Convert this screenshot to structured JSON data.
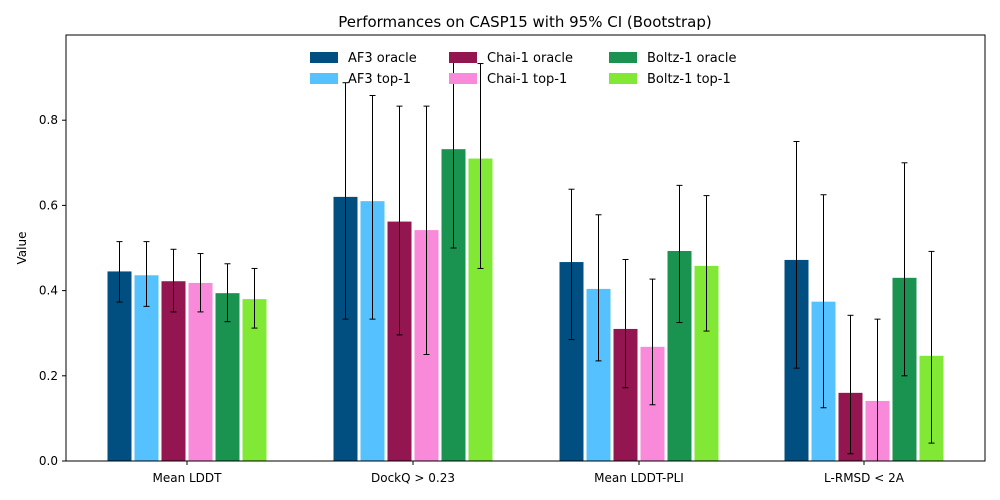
{
  "chart_data": {
    "type": "bar",
    "title": "Performances on CASP15 with 95% CI (Bootstrap)",
    "xlabel": "",
    "ylabel": "Value",
    "ylim": [
      0,
      1.0
    ],
    "yticks": [
      0.0,
      0.2,
      0.4,
      0.6,
      0.8
    ],
    "ytick_labels": [
      "0.0",
      "0.2",
      "0.4",
      "0.6",
      "0.8"
    ],
    "grid": false,
    "legend": "upper-center",
    "categories": [
      "Mean LDDT",
      "DockQ > 0.23",
      "Mean LDDT-PLI",
      "L-RMSD < 2A"
    ],
    "series": [
      {
        "name": "AF3 oracle",
        "color": "#004f80",
        "values": [
          0.445,
          0.62,
          0.467,
          0.472
        ],
        "ci_low": [
          0.373,
          0.333,
          0.285,
          0.218
        ],
        "ci_high": [
          0.515,
          0.888,
          0.638,
          0.75
        ]
      },
      {
        "name": "AF3 top-1",
        "color": "#56c1ff",
        "values": [
          0.436,
          0.61,
          0.404,
          0.374
        ],
        "ci_low": [
          0.363,
          0.333,
          0.235,
          0.125
        ],
        "ci_high": [
          0.515,
          0.858,
          0.578,
          0.625
        ]
      },
      {
        "name": "Chai-1 oracle",
        "color": "#931651",
        "values": [
          0.422,
          0.562,
          0.31,
          0.16
        ],
        "ci_low": [
          0.35,
          0.296,
          0.172,
          0.017
        ],
        "ci_high": [
          0.497,
          0.833,
          0.473,
          0.342
        ]
      },
      {
        "name": "Chai-1 top-1",
        "color": "#f98ad9",
        "values": [
          0.418,
          0.542,
          0.268,
          0.141
        ],
        "ci_low": [
          0.35,
          0.25,
          0.132,
          0.0
        ],
        "ci_high": [
          0.487,
          0.833,
          0.427,
          0.333
        ]
      },
      {
        "name": "Boltz-1 oracle",
        "color": "#1a9350",
        "values": [
          0.394,
          0.732,
          0.493,
          0.43
        ],
        "ci_low": [
          0.327,
          0.5,
          0.325,
          0.2
        ],
        "ci_high": [
          0.463,
          0.958,
          0.647,
          0.7
        ]
      },
      {
        "name": "Boltz-1 top-1",
        "color": "#82e836",
        "values": [
          0.38,
          0.71,
          0.458,
          0.247
        ],
        "ci_low": [
          0.312,
          0.452,
          0.305,
          0.042
        ],
        "ci_high": [
          0.452,
          0.933,
          0.623,
          0.492
        ]
      }
    ]
  }
}
